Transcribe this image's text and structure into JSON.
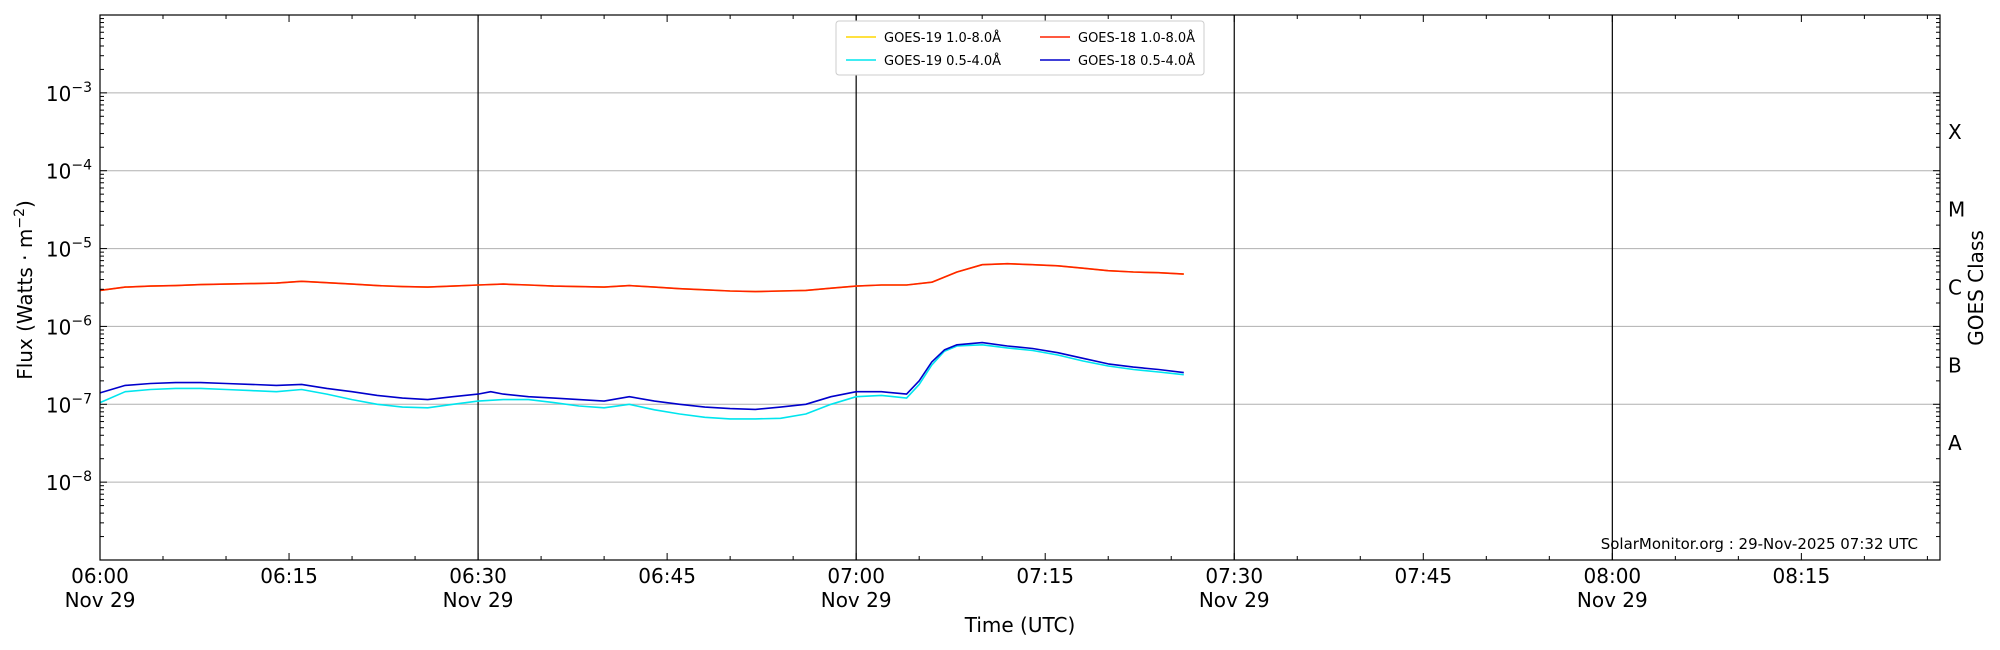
{
  "chart_data": {
    "type": "line",
    "xlabel": "Time (UTC)",
    "ylabel_main": "Flux (Watts",
    "ylabel_unit": "m",
    "ylabel_exp": "−2",
    "y2label": "GOES Class",
    "yscale": "log",
    "xlim": [
      "2025-11-29 06:00",
      "2025-11-29 08:26"
    ],
    "ylim": [
      1e-09,
      0.01
    ],
    "grid": true,
    "legend_position": "top-center",
    "credit": "SolarMonitor.org : 29-Nov-2025 07:32 UTC",
    "x_ticks": [
      {
        "t": "06:00",
        "date": "Nov 29"
      },
      {
        "t": "06:15",
        "date": ""
      },
      {
        "t": "06:30",
        "date": "Nov 29"
      },
      {
        "t": "06:45",
        "date": ""
      },
      {
        "t": "07:00",
        "date": "Nov 29"
      },
      {
        "t": "07:15",
        "date": ""
      },
      {
        "t": "07:30",
        "date": "Nov 29"
      },
      {
        "t": "07:45",
        "date": ""
      },
      {
        "t": "08:00",
        "date": "Nov 29"
      },
      {
        "t": "08:15",
        "date": ""
      }
    ],
    "day_lines": [
      "06:30",
      "07:00",
      "07:30",
      "08:00"
    ],
    "y_ticks": [
      {
        "v": 1e-08,
        "base": "10",
        "exp": "−8"
      },
      {
        "v": 1e-07,
        "base": "10",
        "exp": "−7"
      },
      {
        "v": 1e-06,
        "base": "10",
        "exp": "−6"
      },
      {
        "v": 1e-05,
        "base": "10",
        "exp": "−5"
      },
      {
        "v": 0.0001,
        "base": "10",
        "exp": "−4"
      },
      {
        "v": 0.001,
        "base": "10",
        "exp": "−3"
      }
    ],
    "goes_classes": [
      {
        "label": "A",
        "v": 3.16e-08
      },
      {
        "label": "B",
        "v": 3.16e-07
      },
      {
        "label": "C",
        "v": 3.16e-06
      },
      {
        "label": "M",
        "v": 3.16e-05
      },
      {
        "label": "X",
        "v": 0.000316
      }
    ],
    "legend": [
      {
        "name": "GOES-19 1.0-8.0Å",
        "color": "#ffd700"
      },
      {
        "name": "GOES-19 0.5-4.0Å",
        "color": "#00e5ee"
      },
      {
        "name": "GOES-18 1.0-8.0Å",
        "color": "#ff2200"
      },
      {
        "name": "GOES-18 0.5-4.0Å",
        "color": "#0000cc"
      }
    ],
    "series": [
      {
        "name": "GOES-19 1.0-8.0Å",
        "color": "#ffd700",
        "x": [
          "06:00",
          "06:02",
          "06:04",
          "06:06",
          "06:08",
          "06:10",
          "06:12",
          "06:14",
          "06:16",
          "06:18",
          "06:20",
          "06:22",
          "06:24",
          "06:26",
          "06:28",
          "06:30",
          "06:32",
          "06:34",
          "06:36",
          "06:38",
          "06:40",
          "06:42",
          "06:44",
          "06:46",
          "06:48",
          "06:50",
          "06:52",
          "06:54",
          "06:56",
          "06:58",
          "07:00",
          "07:02",
          "07:04",
          "07:06",
          "07:08",
          "07:10",
          "07:12",
          "07:14",
          "07:16",
          "07:18",
          "07:20",
          "07:22",
          "07:24",
          "07:26"
        ],
        "y": [
          2.9e-06,
          3.2e-06,
          3.3e-06,
          3.35e-06,
          3.45e-06,
          3.5e-06,
          3.55e-06,
          3.6e-06,
          3.8e-06,
          3.65e-06,
          3.5e-06,
          3.35e-06,
          3.25e-06,
          3.2e-06,
          3.3e-06,
          3.4e-06,
          3.5e-06,
          3.4e-06,
          3.3e-06,
          3.25e-06,
          3.2e-06,
          3.35e-06,
          3.2e-06,
          3.05e-06,
          2.95e-06,
          2.85e-06,
          2.8e-06,
          2.85e-06,
          2.9e-06,
          3.1e-06,
          3.3e-06,
          3.4e-06,
          3.4e-06,
          3.7e-06,
          5e-06,
          6.2e-06,
          6.4e-06,
          6.2e-06,
          6e-06,
          5.6e-06,
          5.2e-06,
          5e-06,
          4.9e-06,
          4.7e-06
        ]
      },
      {
        "name": "GOES-18 1.0-8.0Å",
        "color": "#ff2200",
        "x": [
          "06:00",
          "06:02",
          "06:04",
          "06:06",
          "06:08",
          "06:10",
          "06:12",
          "06:14",
          "06:16",
          "06:18",
          "06:20",
          "06:22",
          "06:24",
          "06:26",
          "06:28",
          "06:30",
          "06:32",
          "06:34",
          "06:36",
          "06:38",
          "06:40",
          "06:42",
          "06:44",
          "06:46",
          "06:48",
          "06:50",
          "06:52",
          "06:54",
          "06:56",
          "06:58",
          "07:00",
          "07:02",
          "07:04",
          "07:06",
          "07:08",
          "07:10",
          "07:12",
          "07:14",
          "07:16",
          "07:18",
          "07:20",
          "07:22",
          "07:24",
          "07:26"
        ],
        "y": [
          2.9e-06,
          3.2e-06,
          3.3e-06,
          3.35e-06,
          3.45e-06,
          3.5e-06,
          3.55e-06,
          3.6e-06,
          3.8e-06,
          3.65e-06,
          3.5e-06,
          3.35e-06,
          3.25e-06,
          3.2e-06,
          3.3e-06,
          3.4e-06,
          3.5e-06,
          3.4e-06,
          3.3e-06,
          3.25e-06,
          3.2e-06,
          3.35e-06,
          3.2e-06,
          3.05e-06,
          2.95e-06,
          2.85e-06,
          2.8e-06,
          2.85e-06,
          2.9e-06,
          3.1e-06,
          3.3e-06,
          3.4e-06,
          3.4e-06,
          3.7e-06,
          5e-06,
          6.2e-06,
          6.4e-06,
          6.2e-06,
          6e-06,
          5.6e-06,
          5.2e-06,
          5e-06,
          4.9e-06,
          4.7e-06
        ]
      },
      {
        "name": "GOES-19 0.5-4.0Å",
        "color": "#00e5ee",
        "x": [
          "06:00",
          "06:02",
          "06:04",
          "06:06",
          "06:08",
          "06:10",
          "06:12",
          "06:14",
          "06:16",
          "06:18",
          "06:20",
          "06:22",
          "06:24",
          "06:26",
          "06:28",
          "06:30",
          "06:32",
          "06:34",
          "06:36",
          "06:38",
          "06:40",
          "06:42",
          "06:44",
          "06:46",
          "06:48",
          "06:50",
          "06:52",
          "06:54",
          "06:56",
          "06:58",
          "07:00",
          "07:02",
          "07:04",
          "07:05",
          "07:06",
          "07:07",
          "07:08",
          "07:10",
          "07:12",
          "07:14",
          "07:16",
          "07:18",
          "07:20",
          "07:22",
          "07:24",
          "07:26"
        ],
        "y": [
          1.05e-07,
          1.45e-07,
          1.55e-07,
          1.6e-07,
          1.6e-07,
          1.55e-07,
          1.5e-07,
          1.45e-07,
          1.55e-07,
          1.35e-07,
          1.15e-07,
          1e-07,
          9.2e-08,
          9e-08,
          1e-07,
          1.1e-07,
          1.15e-07,
          1.15e-07,
          1.05e-07,
          9.5e-08,
          9e-08,
          1e-07,
          8.5e-08,
          7.5e-08,
          6.8e-08,
          6.5e-08,
          6.5e-08,
          6.6e-08,
          7.5e-08,
          1e-07,
          1.25e-07,
          1.3e-07,
          1.2e-07,
          1.8e-07,
          3.2e-07,
          4.8e-07,
          5.6e-07,
          5.8e-07,
          5.3e-07,
          4.9e-07,
          4.3e-07,
          3.6e-07,
          3.1e-07,
          2.8e-07,
          2.6e-07,
          2.4e-07
        ]
      },
      {
        "name": "GOES-18 0.5-4.0Å",
        "color": "#0000cc",
        "x": [
          "06:00",
          "06:02",
          "06:04",
          "06:06",
          "06:08",
          "06:10",
          "06:12",
          "06:14",
          "06:16",
          "06:18",
          "06:20",
          "06:22",
          "06:24",
          "06:26",
          "06:28",
          "06:30",
          "06:31",
          "06:32",
          "06:34",
          "06:36",
          "06:38",
          "06:40",
          "06:42",
          "06:44",
          "06:46",
          "06:48",
          "06:50",
          "06:52",
          "06:54",
          "06:56",
          "06:58",
          "07:00",
          "07:02",
          "07:04",
          "07:05",
          "07:06",
          "07:07",
          "07:08",
          "07:10",
          "07:12",
          "07:14",
          "07:16",
          "07:18",
          "07:20",
          "07:22",
          "07:24",
          "07:26"
        ],
        "y": [
          1.4e-07,
          1.75e-07,
          1.85e-07,
          1.9e-07,
          1.9e-07,
          1.85e-07,
          1.8e-07,
          1.75e-07,
          1.8e-07,
          1.6e-07,
          1.45e-07,
          1.3e-07,
          1.2e-07,
          1.15e-07,
          1.25e-07,
          1.35e-07,
          1.45e-07,
          1.35e-07,
          1.25e-07,
          1.2e-07,
          1.15e-07,
          1.1e-07,
          1.25e-07,
          1.1e-07,
          1e-07,
          9.2e-08,
          8.8e-08,
          8.6e-08,
          9.2e-08,
          1e-07,
          1.25e-07,
          1.45e-07,
          1.45e-07,
          1.35e-07,
          2e-07,
          3.5e-07,
          5e-07,
          5.8e-07,
          6.2e-07,
          5.6e-07,
          5.2e-07,
          4.6e-07,
          3.9e-07,
          3.3e-07,
          3e-07,
          2.8e-07,
          2.55e-07
        ]
      }
    ]
  }
}
